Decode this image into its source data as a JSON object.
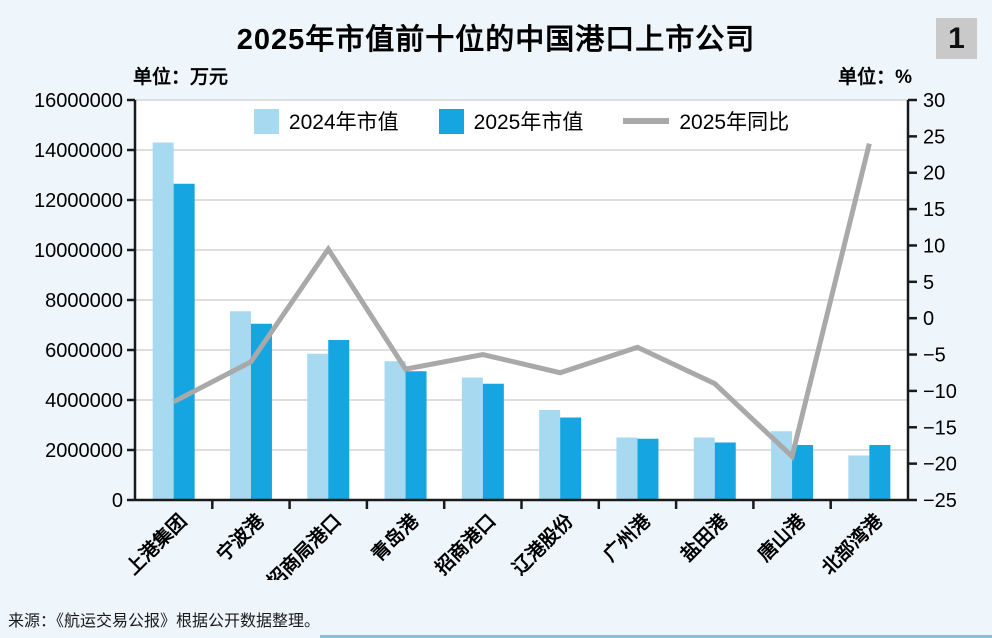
{
  "title": "2025年市值前十位的中国港口上市公司",
  "corner_badge": "1",
  "left_axis_unit": "单位：万元",
  "right_axis_unit": "单位：%",
  "source_note": "来源：《航运交易公报》根据公开数据整理。",
  "colors": {
    "background": "#eef6fc",
    "plot_background": "#ffffff",
    "grid": "#dedede",
    "axis": "#1a1a1a",
    "bar_2024": "#a7d9f1",
    "bar_2025": "#15a5e0",
    "line_yoy": "#a9a9a9",
    "badge_background": "#c9c9c9"
  },
  "chart_data": {
    "type": "bar",
    "subtype": "combo-bar-line",
    "title": "2025年市值前十位的中国港口上市公司",
    "categories": [
      "上港集团",
      "宁波港",
      "招商局港口",
      "青岛港",
      "招商港口",
      "辽港股份",
      "广州港",
      "盐田港",
      "唐山港",
      "北部湾港"
    ],
    "series": [
      {
        "name": "2024年市值",
        "kind": "bar",
        "axis": "left",
        "color": "#a7d9f1",
        "values": [
          14300000,
          7550000,
          5850000,
          5550000,
          4900000,
          3600000,
          2500000,
          2500000,
          2750000,
          1780000
        ]
      },
      {
        "name": "2025年市值",
        "kind": "bar",
        "axis": "left",
        "color": "#15a5e0",
        "values": [
          12650000,
          7050000,
          6400000,
          5150000,
          4650000,
          3300000,
          2450000,
          2300000,
          2200000,
          2200000
        ]
      },
      {
        "name": "2025年同比",
        "kind": "line",
        "axis": "right",
        "color": "#a9a9a9",
        "values": [
          -11.5,
          -6,
          9.5,
          -7,
          -5,
          -7.5,
          -4,
          -9,
          -19,
          24
        ]
      }
    ],
    "left_axis": {
      "unit": "万元",
      "min": 0,
      "max": 16000000,
      "step": 2000000
    },
    "right_axis": {
      "unit": "%",
      "min": -25,
      "max": 30,
      "step": 5
    },
    "grid": true,
    "legend_position": "top-center"
  }
}
